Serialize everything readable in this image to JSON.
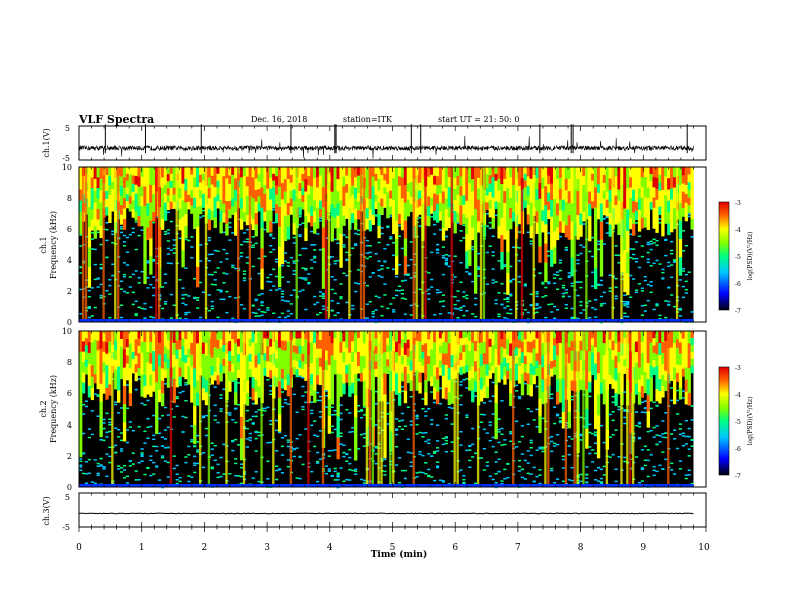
{
  "header": {
    "title": "VLF  Spectra",
    "date": "Dec. 16, 2018",
    "station": "station=ITK",
    "start": "start  UT  =   21: 50: 0"
  },
  "colors": {
    "background": "#ffffff",
    "axis": "#000000",
    "trace": "#000000"
  },
  "chart_data": [
    {
      "type": "line",
      "ylabel": "ch.1(V)",
      "ylim": [
        -5,
        5
      ],
      "yticks": [
        "5",
        "-5"
      ],
      "grid": false,
      "description": "noisy waveform around -1.5 V with spikes"
    },
    {
      "type": "heatmap",
      "ylabel": [
        "ch.1",
        "Frequency  (kHz)"
      ],
      "ylim": [
        0,
        10
      ],
      "yticks": [
        "0",
        "2",
        "4",
        "6",
        "8",
        "10"
      ],
      "colorbar": {
        "label": "log(PSD)(V²/Hz)",
        "range": [
          -7,
          -3
        ],
        "ticks": [
          "-3",
          "-4",
          "-5",
          "-6",
          "-7"
        ]
      }
    },
    {
      "type": "heatmap",
      "ylabel": [
        "ch.2",
        "Frequency  (kHz)"
      ],
      "ylim": [
        0,
        10
      ],
      "yticks": [
        "0",
        "2",
        "4",
        "6",
        "8",
        "10"
      ],
      "colorbar": {
        "label": "log(PSD)(V²/Hz)",
        "range": [
          -7,
          -3
        ],
        "ticks": [
          "-3",
          "-4",
          "-5",
          "-6",
          "-7"
        ]
      }
    },
    {
      "type": "line",
      "ylabel": "ch.3(V)",
      "ylim": [
        -5,
        5
      ],
      "yticks": [
        "5",
        "-5"
      ],
      "grid": false,
      "description": "flat trace near -1 V"
    }
  ],
  "x_axis": {
    "label": "Time  (min)",
    "range": [
      0,
      10
    ],
    "ticks": [
      "0",
      "1",
      "2",
      "3",
      "4",
      "5",
      "6",
      "7",
      "8",
      "9",
      "10"
    ]
  }
}
